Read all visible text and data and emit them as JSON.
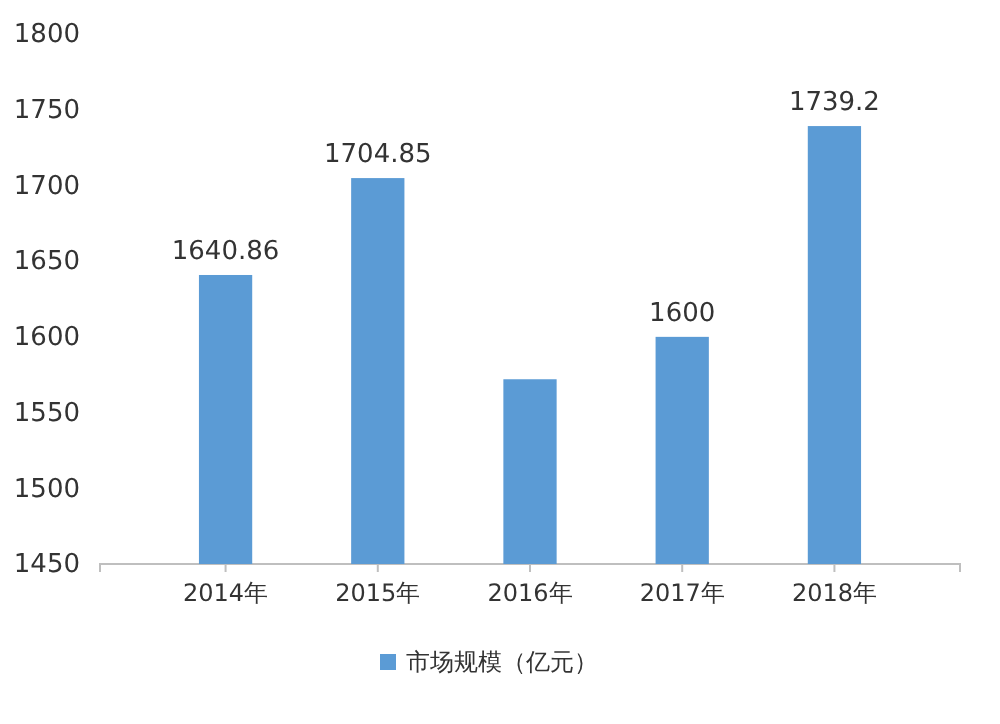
{
  "chart_data": {
    "type": "bar",
    "categories": [
      "2014年",
      "2015年",
      "2016年",
      "2017年",
      "2018年"
    ],
    "series": [
      {
        "name": "市场规模（亿元）",
        "color": "#5b9bd5",
        "values": [
          1640.86,
          1704.85,
          1572,
          1600,
          1739.2
        ]
      }
    ],
    "value_labels": [
      "1640.86",
      "1704.85",
      null,
      "1600",
      "1739.2"
    ],
    "ylim": [
      1450,
      1800
    ],
    "yticks": [
      1450,
      1500,
      1550,
      1600,
      1650,
      1700,
      1750,
      1800
    ],
    "grid": false,
    "legend": "bottom"
  }
}
